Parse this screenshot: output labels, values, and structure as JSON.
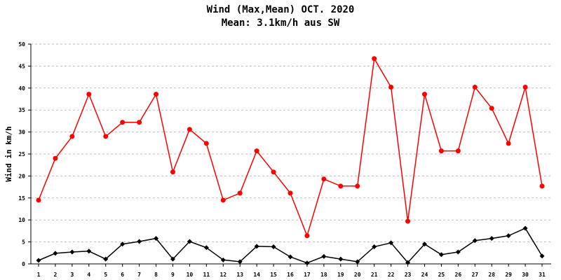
{
  "chart_data": {
    "type": "line",
    "title": "Wind (Max,Mean) OCT. 2020",
    "subtitle": "Mean: 3.1km/h aus SW",
    "ylabel": "Wind in km/h",
    "xlabel": "",
    "ylim": [
      0,
      50
    ],
    "yticks": [
      0,
      5,
      10,
      15,
      20,
      25,
      30,
      35,
      40,
      45,
      50
    ],
    "grid": "horizontal-dashed",
    "x": [
      "1",
      "2",
      "3",
      "4",
      "5",
      "6",
      "7",
      "8",
      "9",
      "10",
      "11",
      "12",
      "13",
      "14",
      "15",
      "16",
      "17",
      "18",
      "19",
      "20",
      "21",
      "22",
      "23",
      "24",
      "25",
      "26",
      "27",
      "28",
      "29",
      "30",
      "31"
    ],
    "series": [
      {
        "color": "#ff0000",
        "marker": "circle",
        "values": [
          14.5,
          24.0,
          29.0,
          38.6,
          29.0,
          32.2,
          32.2,
          38.6,
          20.9,
          30.6,
          27.4,
          14.5,
          16.1,
          25.7,
          20.9,
          16.1,
          6.4,
          19.3,
          17.7,
          17.7,
          46.7,
          40.2,
          9.7,
          38.6,
          25.7,
          25.7,
          40.2,
          35.4,
          27.4,
          40.2,
          17.7
        ]
      },
      {
        "color": "#000000",
        "marker": "diamond",
        "values": [
          0.8,
          2.4,
          2.7,
          2.9,
          1.1,
          4.5,
          5.1,
          5.8,
          1.1,
          5.1,
          3.7,
          0.9,
          0.5,
          4.0,
          3.9,
          1.6,
          0.2,
          1.7,
          1.1,
          0.5,
          3.9,
          4.8,
          0.3,
          4.5,
          2.1,
          2.7,
          5.3,
          5.8,
          6.4,
          8.1,
          1.8
        ]
      }
    ]
  }
}
